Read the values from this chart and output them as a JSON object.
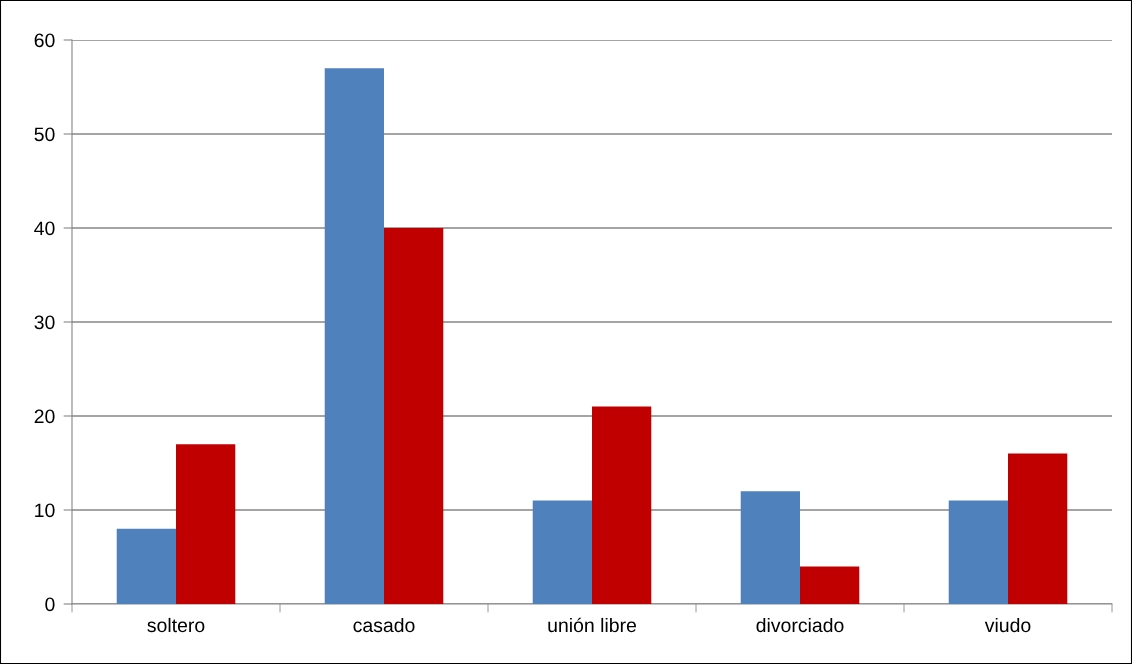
{
  "chart_data": {
    "type": "bar",
    "categories": [
      "soltero",
      "casado",
      "unión libre",
      "divorciado",
      "viudo"
    ],
    "series": [
      {
        "color": "#4f81bd",
        "values": [
          8,
          57,
          11,
          12,
          11
        ]
      },
      {
        "color": "#c00000",
        "values": [
          17,
          40,
          21,
          4,
          16
        ]
      }
    ],
    "ylim": [
      0,
      60
    ],
    "yticks": [
      0,
      10,
      20,
      30,
      40,
      50,
      60
    ],
    "grid": "y"
  }
}
